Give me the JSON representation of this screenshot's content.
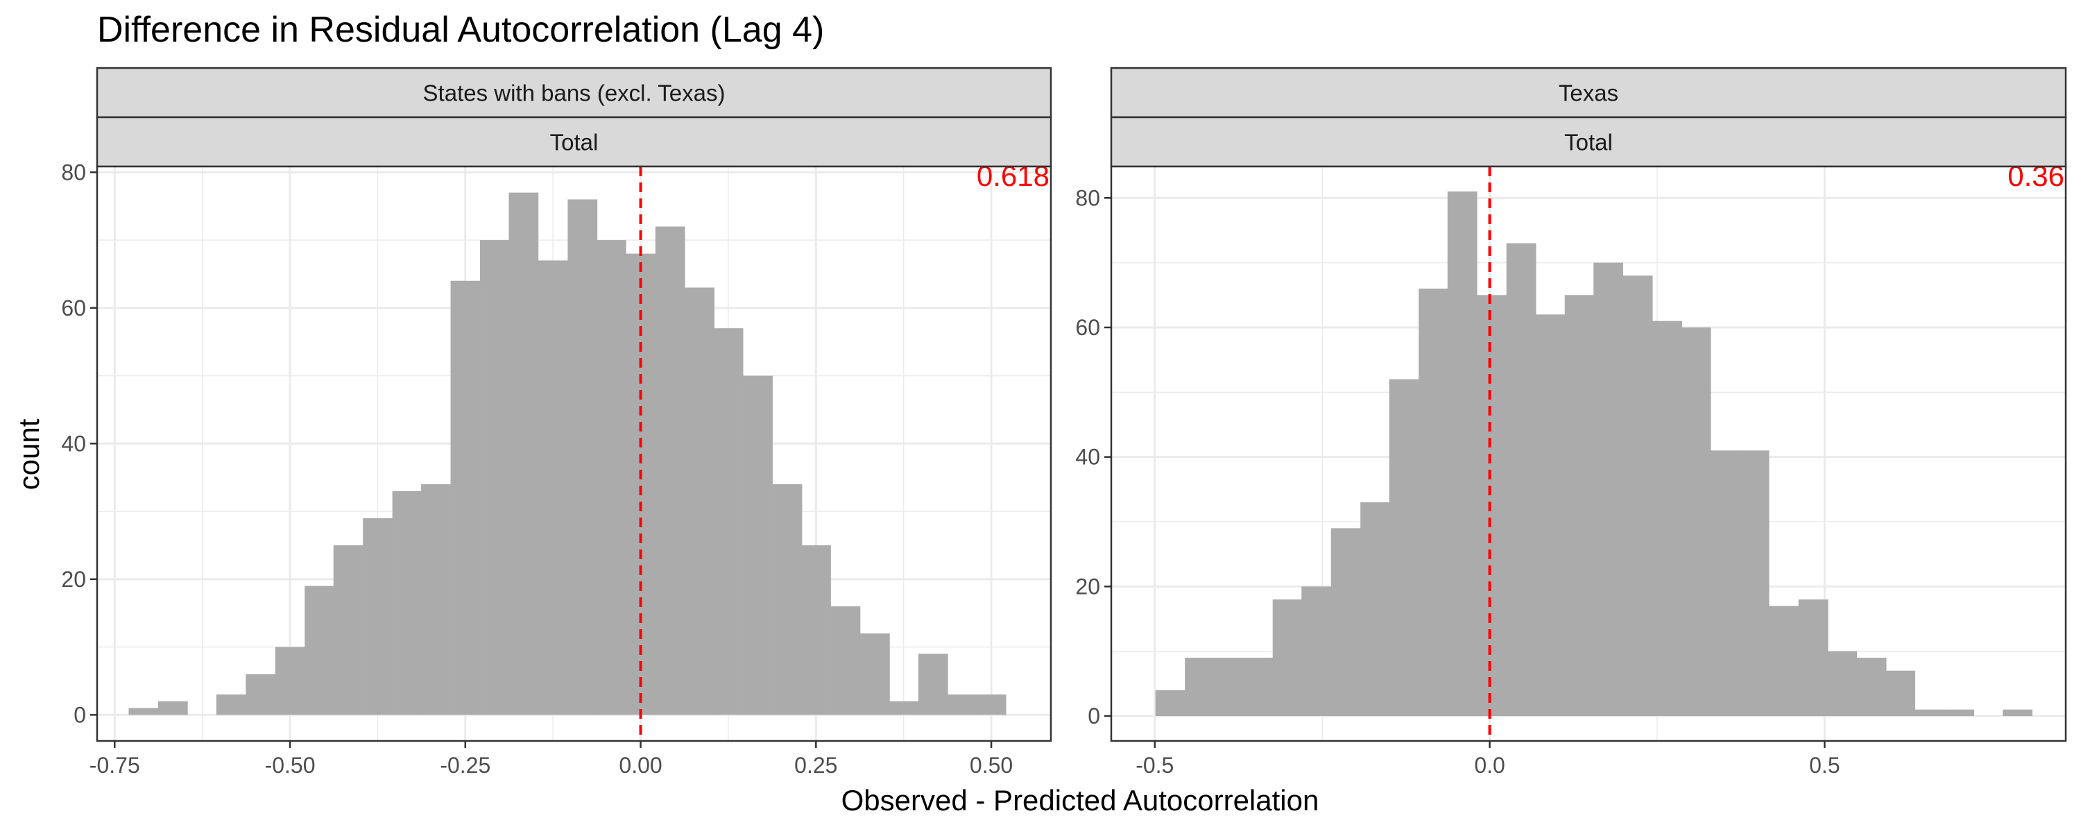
{
  "chart_data": {
    "type": "histogram",
    "title": "Difference in Residual Autocorrelation (Lag 4)",
    "xlabel": "Observed - Predicted Autocorrelation",
    "ylabel": "count",
    "colors": {
      "bar": "#ababab",
      "reference_line": "#ff0000",
      "annotation": "#ff0000",
      "strip_fill": "#d9d9d9",
      "grid": "#ebebeb"
    },
    "grid": true,
    "panels": [
      {
        "strip_top": "States with bans (excl. Texas)",
        "strip_bottom": "Total",
        "annotation": "0.618",
        "reference_x": 0,
        "xlim": [
          -0.775,
          0.585
        ],
        "ylim": [
          -3.85,
          80.85
        ],
        "xticks": [
          -0.75,
          -0.5,
          -0.25,
          0,
          0.25,
          0.5
        ],
        "xtick_labels": [
          "-0.75",
          "-0.50",
          "-0.25",
          "0.00",
          "0.25",
          "0.50"
        ],
        "yticks": [
          0,
          20,
          40,
          60,
          80
        ],
        "ytick_labels": [
          "0",
          "20",
          "40",
          "60",
          "80"
        ],
        "bin_width": 0.0417,
        "bins": [
          {
            "x0": -0.73,
            "count": 1
          },
          {
            "x0": -0.688,
            "count": 2
          },
          {
            "x0": -0.646,
            "count": 0
          },
          {
            "x0": -0.605,
            "count": 3
          },
          {
            "x0": -0.563,
            "count": 6
          },
          {
            "x0": -0.521,
            "count": 10
          },
          {
            "x0": -0.479,
            "count": 19
          },
          {
            "x0": -0.438,
            "count": 25
          },
          {
            "x0": -0.396,
            "count": 29
          },
          {
            "x0": -0.354,
            "count": 33
          },
          {
            "x0": -0.313,
            "count": 34
          },
          {
            "x0": -0.271,
            "count": 64
          },
          {
            "x0": -0.229,
            "count": 70
          },
          {
            "x0": -0.188,
            "count": 77
          },
          {
            "x0": -0.146,
            "count": 67
          },
          {
            "x0": -0.104,
            "count": 76
          },
          {
            "x0": -0.063,
            "count": 70
          },
          {
            "x0": -0.021,
            "count": 68
          },
          {
            "x0": 0.021,
            "count": 72
          },
          {
            "x0": 0.063,
            "count": 63
          },
          {
            "x0": 0.104,
            "count": 57
          },
          {
            "x0": 0.146,
            "count": 50
          },
          {
            "x0": 0.188,
            "count": 34
          },
          {
            "x0": 0.229,
            "count": 25
          },
          {
            "x0": 0.271,
            "count": 16
          },
          {
            "x0": 0.313,
            "count": 12
          },
          {
            "x0": 0.354,
            "count": 2
          },
          {
            "x0": 0.396,
            "count": 9
          },
          {
            "x0": 0.438,
            "count": 3
          },
          {
            "x0": 0.479,
            "count": 3
          }
        ]
      },
      {
        "strip_top": "Texas",
        "strip_bottom": "Total",
        "annotation": "0.36",
        "reference_x": 0,
        "xlim": [
          -0.565,
          0.86
        ],
        "ylim": [
          -3.85,
          84.85
        ],
        "xticks": [
          -0.5,
          0,
          0.5
        ],
        "xtick_labels": [
          "-0.5",
          "0.0",
          "0.5"
        ],
        "yticks": [
          0,
          20,
          40,
          60,
          80
        ],
        "ytick_labels": [
          "0",
          "20",
          "40",
          "60",
          "80"
        ],
        "bin_width": 0.0437,
        "bins": [
          {
            "x0": -0.499,
            "count": 4
          },
          {
            "x0": -0.455,
            "count": 9
          },
          {
            "x0": -0.411,
            "count": 9
          },
          {
            "x0": -0.368,
            "count": 9
          },
          {
            "x0": -0.324,
            "count": 18
          },
          {
            "x0": -0.281,
            "count": 20
          },
          {
            "x0": -0.237,
            "count": 29
          },
          {
            "x0": -0.193,
            "count": 33
          },
          {
            "x0": -0.15,
            "count": 52
          },
          {
            "x0": -0.106,
            "count": 66
          },
          {
            "x0": -0.063,
            "count": 81
          },
          {
            "x0": -0.019,
            "count": 65
          },
          {
            "x0": 0.025,
            "count": 73
          },
          {
            "x0": 0.068,
            "count": 62
          },
          {
            "x0": 0.112,
            "count": 65
          },
          {
            "x0": 0.155,
            "count": 70
          },
          {
            "x0": 0.199,
            "count": 68
          },
          {
            "x0": 0.243,
            "count": 61
          },
          {
            "x0": 0.286,
            "count": 60
          },
          {
            "x0": 0.33,
            "count": 41
          },
          {
            "x0": 0.373,
            "count": 41
          },
          {
            "x0": 0.417,
            "count": 17
          },
          {
            "x0": 0.461,
            "count": 18
          },
          {
            "x0": 0.504,
            "count": 10
          },
          {
            "x0": 0.548,
            "count": 9
          },
          {
            "x0": 0.591,
            "count": 7
          },
          {
            "x0": 0.635,
            "count": 1
          },
          {
            "x0": 0.679,
            "count": 1
          },
          {
            "x0": 0.722,
            "count": 0
          },
          {
            "x0": 0.766,
            "count": 1
          }
        ]
      }
    ]
  }
}
